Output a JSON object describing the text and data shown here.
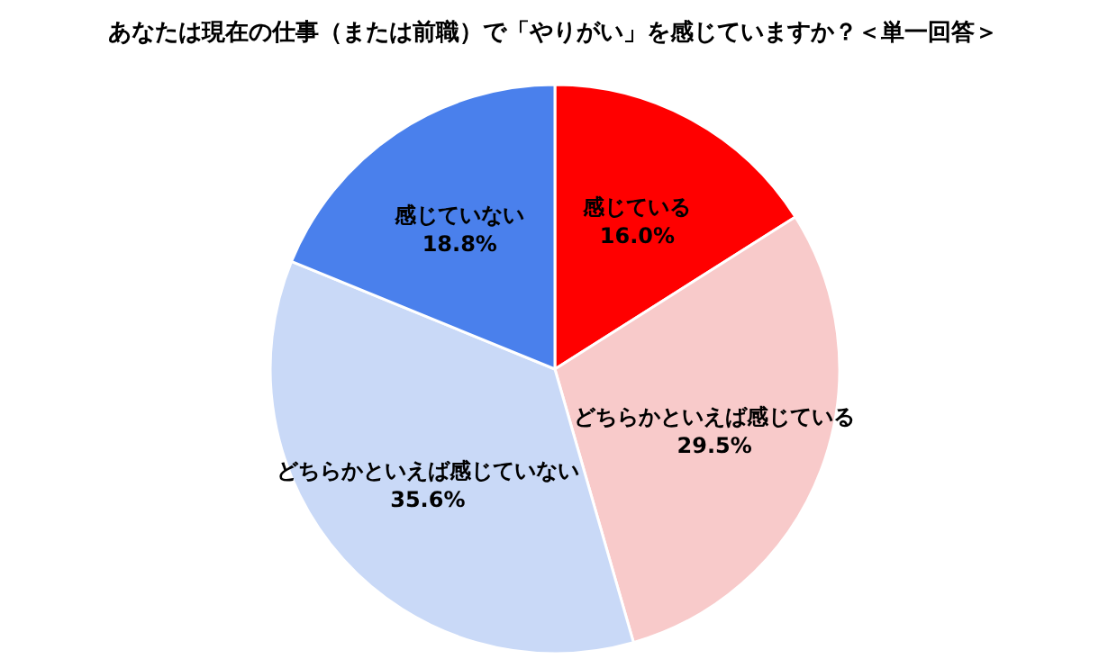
{
  "chart_data": {
    "type": "pie",
    "title": "あなたは現在の仕事（または前職）で「やりがい」を感じていますか？＜単一回答＞",
    "categories": [
      "感じている",
      "どちらかといえば感じている",
      "どちらかといえば感じていない",
      "感じていない"
    ],
    "values": [
      16.0,
      29.5,
      35.6,
      18.8
    ],
    "colors": [
      "#ff0000",
      "#f8caca",
      "#c9d9f7",
      "#4a80ec"
    ],
    "value_labels": [
      "16.0%",
      "29.5%",
      "35.6%",
      "18.8%"
    ],
    "legend": false
  }
}
